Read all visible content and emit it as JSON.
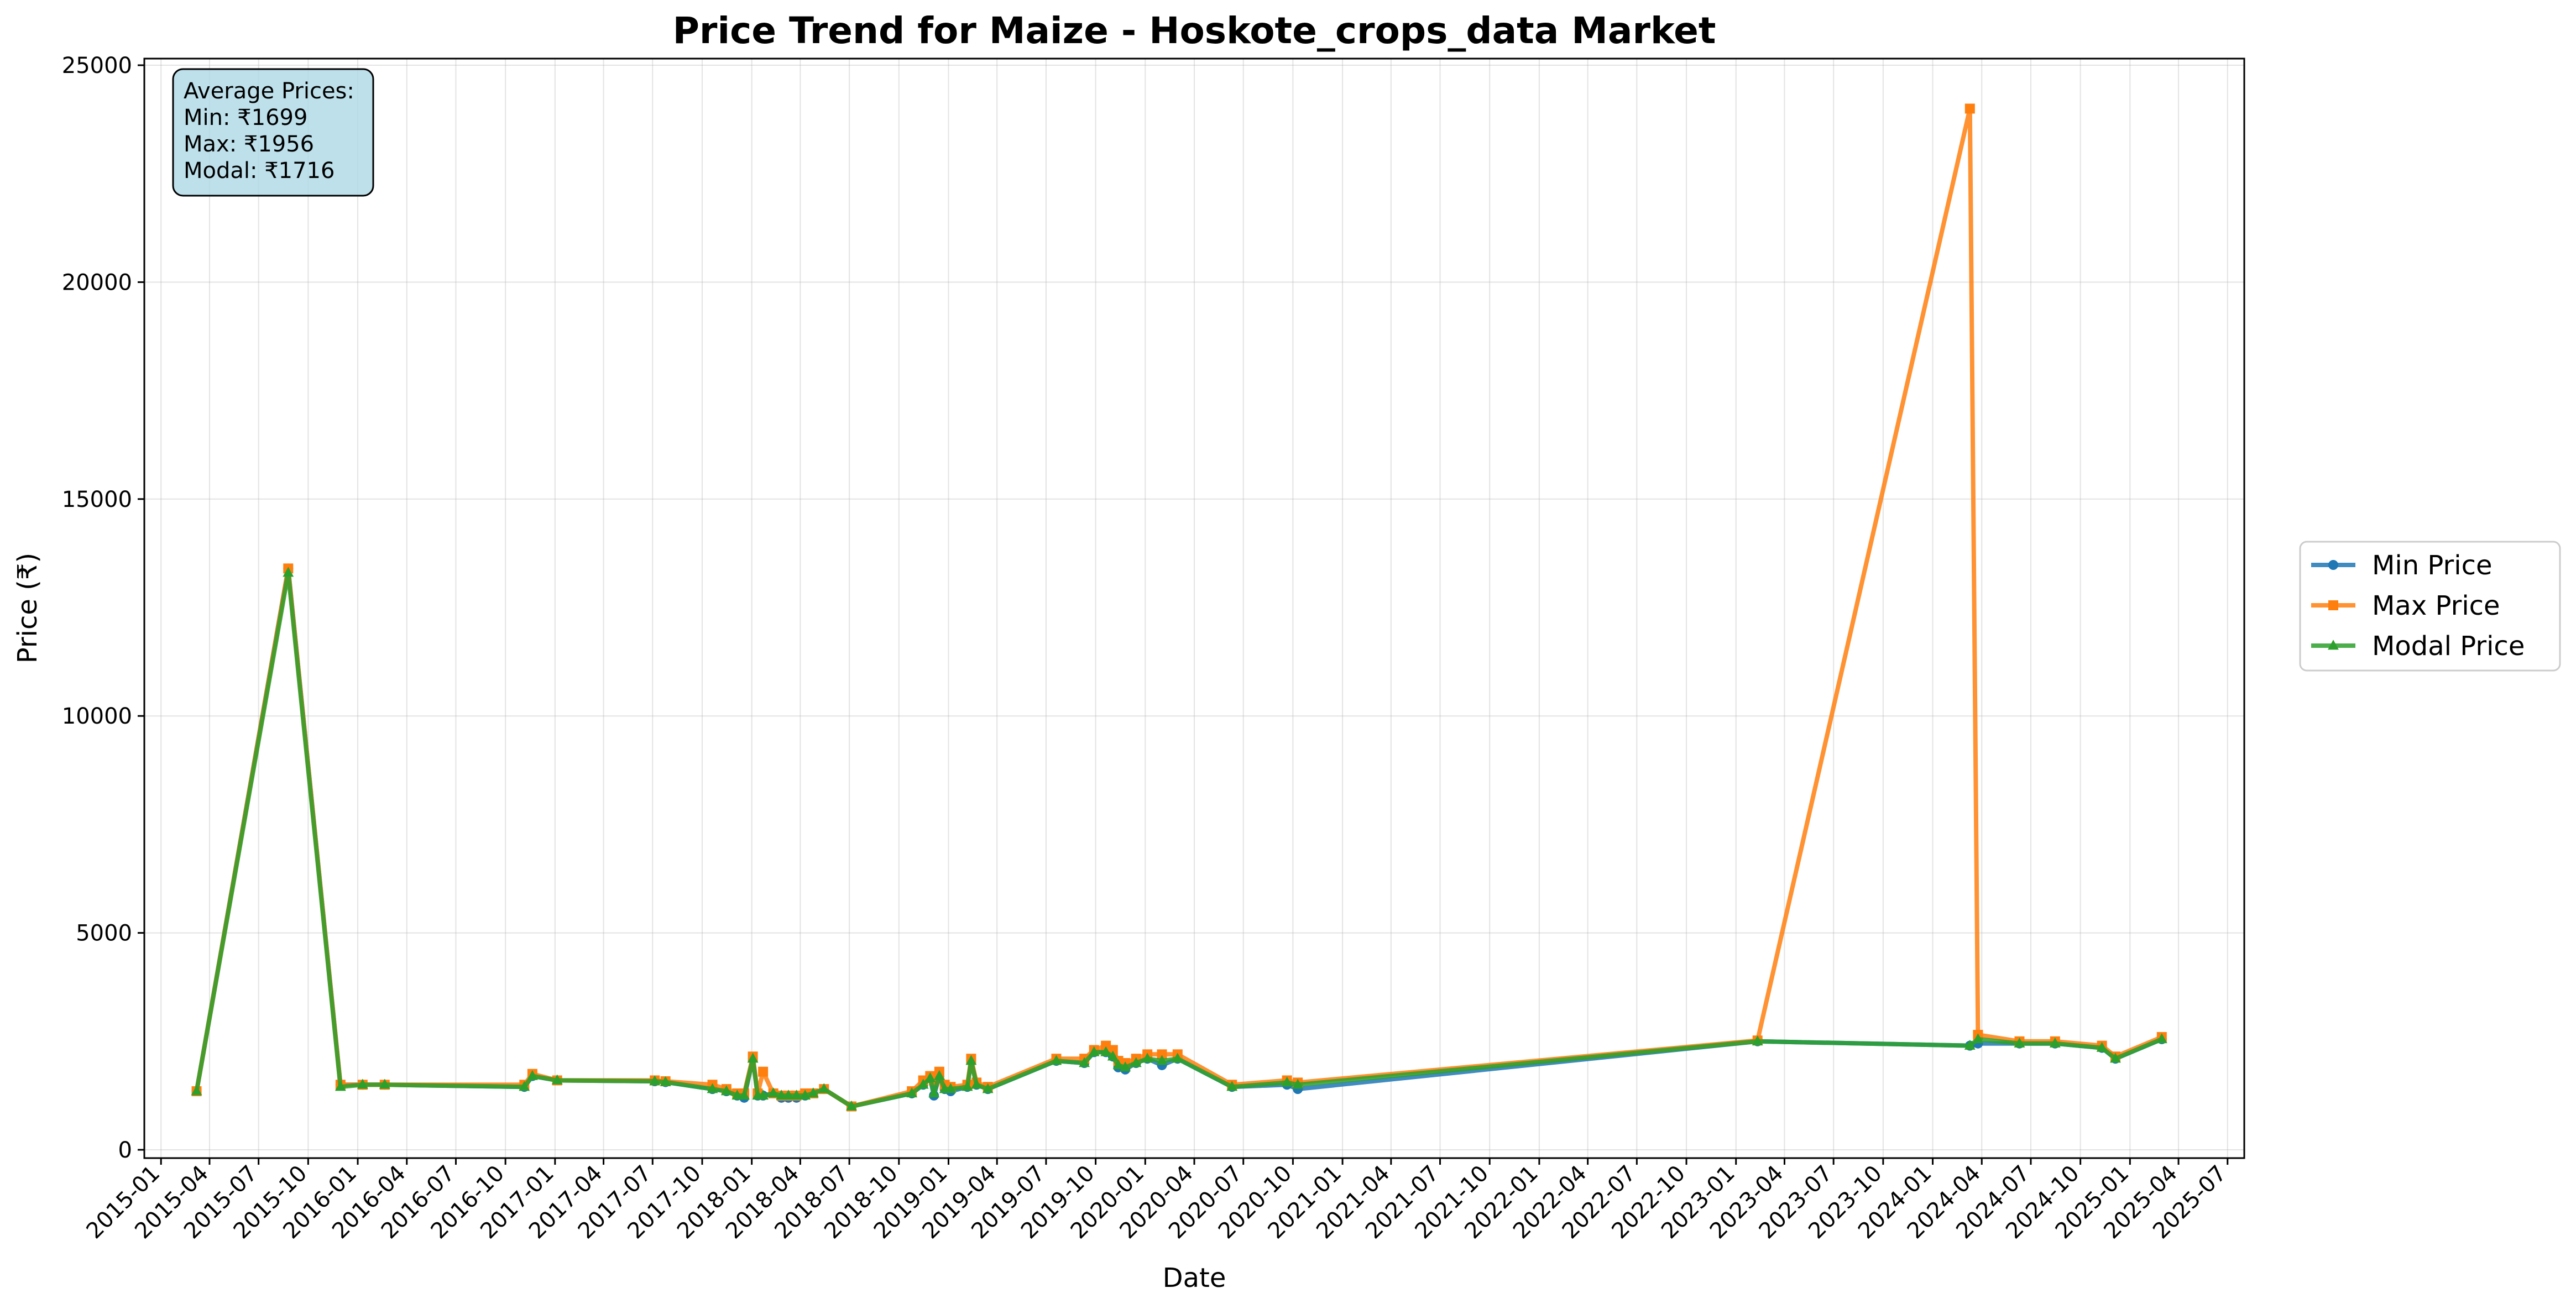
{
  "chart_data": {
    "type": "line",
    "title": "Price Trend for Maize - Hoskote_crops_data Market",
    "xlabel": "Date",
    "ylabel": "Price (₹)",
    "ylim": [
      0,
      25000
    ],
    "xlim": [
      "2014-12-01",
      "2025-08-01"
    ],
    "yticks": [
      0,
      5000,
      10000,
      15000,
      20000,
      25000
    ],
    "xticks": [
      "2015-01",
      "2015-04",
      "2015-07",
      "2015-10",
      "2016-01",
      "2016-04",
      "2016-07",
      "2016-10",
      "2017-01",
      "2017-04",
      "2017-07",
      "2017-10",
      "2018-01",
      "2018-04",
      "2018-07",
      "2018-10",
      "2019-01",
      "2019-04",
      "2019-07",
      "2019-10",
      "2020-01",
      "2020-04",
      "2020-07",
      "2020-10",
      "2021-01",
      "2021-04",
      "2021-07",
      "2021-10",
      "2022-01",
      "2022-04",
      "2022-07",
      "2022-10",
      "2023-01",
      "2023-04",
      "2023-07",
      "2023-10",
      "2024-01",
      "2024-04",
      "2024-07",
      "2024-10",
      "2025-01",
      "2025-04",
      "2025-07"
    ],
    "grid": true,
    "legend_position": "outside-right",
    "annotation": {
      "lines": [
        "Average Prices:",
        "Min: ₹1699",
        "Max: ₹1956",
        "Modal: ₹1716"
      ],
      "background": "#add8e6"
    },
    "series": [
      {
        "name": "Min Price",
        "color": "#1f77b4",
        "marker": "circle",
        "points": [
          [
            "2015-03-08",
            1350
          ],
          [
            "2015-08-25",
            13400
          ],
          [
            "2015-11-30",
            1500
          ],
          [
            "2016-01-10",
            1500
          ],
          [
            "2016-02-20",
            1500
          ],
          [
            "2016-11-05",
            1450
          ],
          [
            "2016-11-20",
            1700
          ],
          [
            "2017-01-05",
            1600
          ],
          [
            "2017-07-05",
            1580
          ],
          [
            "2017-07-25",
            1560
          ],
          [
            "2017-10-20",
            1400
          ],
          [
            "2017-11-15",
            1350
          ],
          [
            "2017-12-05",
            1250
          ],
          [
            "2017-12-18",
            1200
          ],
          [
            "2018-01-03",
            2100
          ],
          [
            "2018-01-12",
            1250
          ],
          [
            "2018-01-22",
            1250
          ],
          [
            "2018-02-10",
            1300
          ],
          [
            "2018-02-25",
            1200
          ],
          [
            "2018-03-10",
            1200
          ],
          [
            "2018-03-25",
            1200
          ],
          [
            "2018-04-10",
            1250
          ],
          [
            "2018-04-25",
            1300
          ],
          [
            "2018-05-15",
            1400
          ],
          [
            "2018-07-05",
            1000
          ],
          [
            "2018-10-25",
            1300
          ],
          [
            "2018-11-15",
            1500
          ],
          [
            "2018-11-28",
            1650
          ],
          [
            "2018-12-05",
            1250
          ],
          [
            "2018-12-15",
            1700
          ],
          [
            "2018-12-25",
            1400
          ],
          [
            "2019-01-05",
            1350
          ],
          [
            "2019-02-05",
            1450
          ],
          [
            "2019-02-12",
            2050
          ],
          [
            "2019-02-22",
            1500
          ],
          [
            "2019-03-15",
            1400
          ],
          [
            "2019-07-20",
            2050
          ],
          [
            "2019-09-10",
            2000
          ],
          [
            "2019-09-28",
            2250
          ],
          [
            "2019-10-20",
            2250
          ],
          [
            "2019-11-02",
            2150
          ],
          [
            "2019-11-12",
            1900
          ],
          [
            "2019-11-25",
            1850
          ],
          [
            "2019-12-15",
            2000
          ],
          [
            "2020-01-05",
            2100
          ],
          [
            "2020-02-01",
            1950
          ],
          [
            "2020-03-01",
            2100
          ],
          [
            "2020-06-10",
            1450
          ],
          [
            "2020-09-20",
            1500
          ],
          [
            "2020-10-10",
            1400
          ],
          [
            "2023-02-10",
            2500
          ],
          [
            "2024-03-10",
            2400
          ],
          [
            "2024-03-25",
            2450
          ],
          [
            "2024-06-10",
            2450
          ],
          [
            "2024-08-15",
            2450
          ],
          [
            "2024-11-10",
            2350
          ],
          [
            "2024-12-05",
            2100
          ],
          [
            "2025-03-01",
            2550
          ]
        ]
      },
      {
        "name": "Max Price",
        "color": "#ff7f0e",
        "marker": "square",
        "points": [
          [
            "2015-03-08",
            1350
          ],
          [
            "2015-08-25",
            13400
          ],
          [
            "2015-11-30",
            1500
          ],
          [
            "2016-01-10",
            1500
          ],
          [
            "2016-02-20",
            1500
          ],
          [
            "2016-11-05",
            1500
          ],
          [
            "2016-11-20",
            1750
          ],
          [
            "2017-01-05",
            1600
          ],
          [
            "2017-07-05",
            1600
          ],
          [
            "2017-07-25",
            1580
          ],
          [
            "2017-10-20",
            1500
          ],
          [
            "2017-11-15",
            1400
          ],
          [
            "2017-12-05",
            1300
          ],
          [
            "2017-12-18",
            1300
          ],
          [
            "2018-01-03",
            2150
          ],
          [
            "2018-01-12",
            1300
          ],
          [
            "2018-01-22",
            1800
          ],
          [
            "2018-02-10",
            1300
          ],
          [
            "2018-02-25",
            1250
          ],
          [
            "2018-03-10",
            1250
          ],
          [
            "2018-03-25",
            1250
          ],
          [
            "2018-04-10",
            1300
          ],
          [
            "2018-04-25",
            1300
          ],
          [
            "2018-05-15",
            1400
          ],
          [
            "2018-07-05",
            1000
          ],
          [
            "2018-10-25",
            1350
          ],
          [
            "2018-11-15",
            1600
          ],
          [
            "2018-11-28",
            1700
          ],
          [
            "2018-12-05",
            1600
          ],
          [
            "2018-12-15",
            1800
          ],
          [
            "2018-12-25",
            1500
          ],
          [
            "2019-01-05",
            1450
          ],
          [
            "2019-02-05",
            1500
          ],
          [
            "2019-02-12",
            2100
          ],
          [
            "2019-02-22",
            1550
          ],
          [
            "2019-03-15",
            1450
          ],
          [
            "2019-07-20",
            2100
          ],
          [
            "2019-09-10",
            2100
          ],
          [
            "2019-09-28",
            2300
          ],
          [
            "2019-10-20",
            2400
          ],
          [
            "2019-11-02",
            2300
          ],
          [
            "2019-11-12",
            2050
          ],
          [
            "2019-11-25",
            2000
          ],
          [
            "2019-12-15",
            2100
          ],
          [
            "2020-01-05",
            2200
          ],
          [
            "2020-02-01",
            2200
          ],
          [
            "2020-03-01",
            2200
          ],
          [
            "2020-06-10",
            1500
          ],
          [
            "2020-09-20",
            1600
          ],
          [
            "2020-10-10",
            1550
          ],
          [
            "2023-02-10",
            2520
          ],
          [
            "2024-03-10",
            24000
          ],
          [
            "2024-03-25",
            2650
          ],
          [
            "2024-06-10",
            2500
          ],
          [
            "2024-08-15",
            2500
          ],
          [
            "2024-11-10",
            2400
          ],
          [
            "2024-12-05",
            2150
          ],
          [
            "2025-03-01",
            2600
          ]
        ]
      },
      {
        "name": "Modal Price",
        "color": "#2ca02c",
        "marker": "triangle",
        "points": [
          [
            "2015-03-08",
            1350
          ],
          [
            "2015-08-25",
            13300
          ],
          [
            "2015-11-30",
            1450
          ],
          [
            "2016-01-10",
            1500
          ],
          [
            "2016-02-20",
            1500
          ],
          [
            "2016-11-05",
            1450
          ],
          [
            "2016-11-20",
            1700
          ],
          [
            "2017-01-05",
            1600
          ],
          [
            "2017-07-05",
            1580
          ],
          [
            "2017-07-25",
            1560
          ],
          [
            "2017-10-20",
            1400
          ],
          [
            "2017-11-15",
            1350
          ],
          [
            "2017-12-05",
            1250
          ],
          [
            "2017-12-18",
            1250
          ],
          [
            "2018-01-03",
            2100
          ],
          [
            "2018-01-12",
            1250
          ],
          [
            "2018-01-22",
            1250
          ],
          [
            "2018-02-10",
            1300
          ],
          [
            "2018-02-25",
            1250
          ],
          [
            "2018-03-10",
            1250
          ],
          [
            "2018-03-25",
            1250
          ],
          [
            "2018-04-10",
            1250
          ],
          [
            "2018-04-25",
            1300
          ],
          [
            "2018-05-15",
            1400
          ],
          [
            "2018-07-05",
            1000
          ],
          [
            "2018-10-25",
            1300
          ],
          [
            "2018-11-15",
            1500
          ],
          [
            "2018-11-28",
            1650
          ],
          [
            "2018-12-05",
            1300
          ],
          [
            "2018-12-15",
            1700
          ],
          [
            "2018-12-25",
            1400
          ],
          [
            "2019-01-05",
            1400
          ],
          [
            "2019-02-05",
            1450
          ],
          [
            "2019-02-12",
            2050
          ],
          [
            "2019-02-22",
            1500
          ],
          [
            "2019-03-15",
            1400
          ],
          [
            "2019-07-20",
            2050
          ],
          [
            "2019-09-10",
            2000
          ],
          [
            "2019-09-28",
            2250
          ],
          [
            "2019-10-20",
            2250
          ],
          [
            "2019-11-02",
            2150
          ],
          [
            "2019-11-12",
            1950
          ],
          [
            "2019-11-25",
            1900
          ],
          [
            "2019-12-15",
            2000
          ],
          [
            "2020-01-05",
            2100
          ],
          [
            "2020-02-01",
            2050
          ],
          [
            "2020-03-01",
            2100
          ],
          [
            "2020-06-10",
            1450
          ],
          [
            "2020-09-20",
            1550
          ],
          [
            "2020-10-10",
            1500
          ],
          [
            "2023-02-10",
            2500
          ],
          [
            "2024-03-10",
            2400
          ],
          [
            "2024-03-25",
            2550
          ],
          [
            "2024-06-10",
            2450
          ],
          [
            "2024-08-15",
            2450
          ],
          [
            "2024-11-10",
            2350
          ],
          [
            "2024-12-05",
            2100
          ],
          [
            "2025-03-01",
            2550
          ]
        ]
      }
    ]
  }
}
